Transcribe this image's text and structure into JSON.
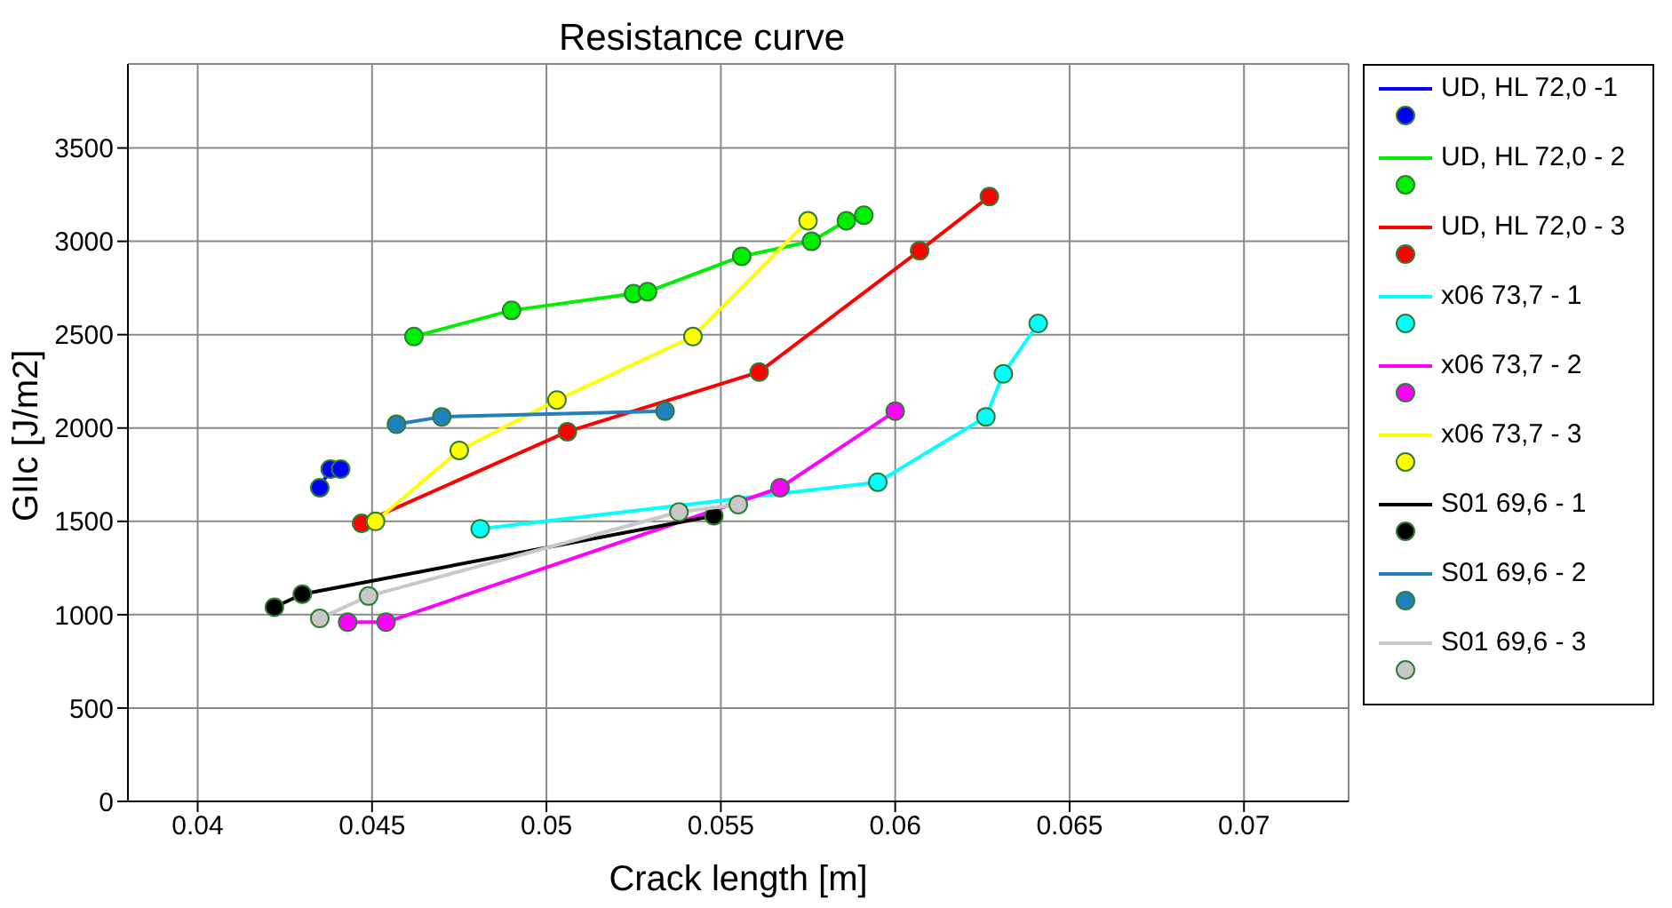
{
  "chart_data": {
    "type": "line",
    "title": "Resistance curve",
    "xlabel": "Crack length [m]",
    "ylabel": "GIIc [J/m2]",
    "xlim": [
      0.038,
      0.073
    ],
    "xticks": [
      0.04,
      0.045,
      0.05,
      0.055,
      0.06,
      0.065,
      0.07
    ],
    "ylim": [
      0,
      3950
    ],
    "yticks": [
      0,
      500,
      1000,
      1500,
      2000,
      2500,
      3000,
      3500
    ],
    "grid": true,
    "legend": "right",
    "marker": "circle",
    "line_style": "solid",
    "series": [
      {
        "name": "UD, HL 72,0 -1",
        "color": "#0000ff",
        "x": [
          0.0435,
          0.0438,
          0.0441
        ],
        "values": [
          1680,
          1780,
          1780
        ]
      },
      {
        "name": "UD, HL 72,0 - 2",
        "color": "#00ee00",
        "x": [
          0.0462,
          0.049,
          0.0525,
          0.0529,
          0.0556,
          0.0576,
          0.0586,
          0.0591
        ],
        "values": [
          2490,
          2630,
          2720,
          2730,
          2920,
          3000,
          3110,
          3140
        ]
      },
      {
        "name": "UD, HL 72,0 - 3",
        "color": "#ff0000",
        "x": [
          0.0447,
          0.0506,
          0.0561,
          0.0607,
          0.0627
        ],
        "values": [
          1490,
          1980,
          2300,
          2950,
          3240
        ]
      },
      {
        "name": "x06 73,7 - 1",
        "color": "#00ffff",
        "x": [
          0.0481,
          0.0595,
          0.0626,
          0.0631,
          0.0641
        ],
        "values": [
          1460,
          1710,
          2060,
          2290,
          2560
        ]
      },
      {
        "name": "x06 73,7 - 2",
        "color": "#ff00ff",
        "x": [
          0.0443,
          0.0454,
          0.0567,
          0.06
        ],
        "values": [
          960,
          960,
          1680,
          2090
        ]
      },
      {
        "name": "x06 73,7 - 3",
        "color": "#ffff00",
        "x": [
          0.0451,
          0.0475,
          0.0503,
          0.0542,
          0.0575
        ],
        "values": [
          1500,
          1880,
          2150,
          2490,
          3110
        ]
      },
      {
        "name": "S01 69,6 - 1",
        "color": "#000000",
        "x": [
          0.0422,
          0.043,
          0.0548
        ],
        "values": [
          1040,
          1110,
          1530
        ]
      },
      {
        "name": "S01 69,6 - 2",
        "color": "#2080c0",
        "x": [
          0.0457,
          0.047,
          0.0534
        ],
        "values": [
          2020,
          2060,
          2090
        ]
      },
      {
        "name": "S01 69,6 - 3",
        "color": "#c8c8c8",
        "x": [
          0.0435,
          0.0449,
          0.0538,
          0.0555
        ],
        "values": [
          980,
          1100,
          1550,
          1590
        ]
      }
    ]
  }
}
